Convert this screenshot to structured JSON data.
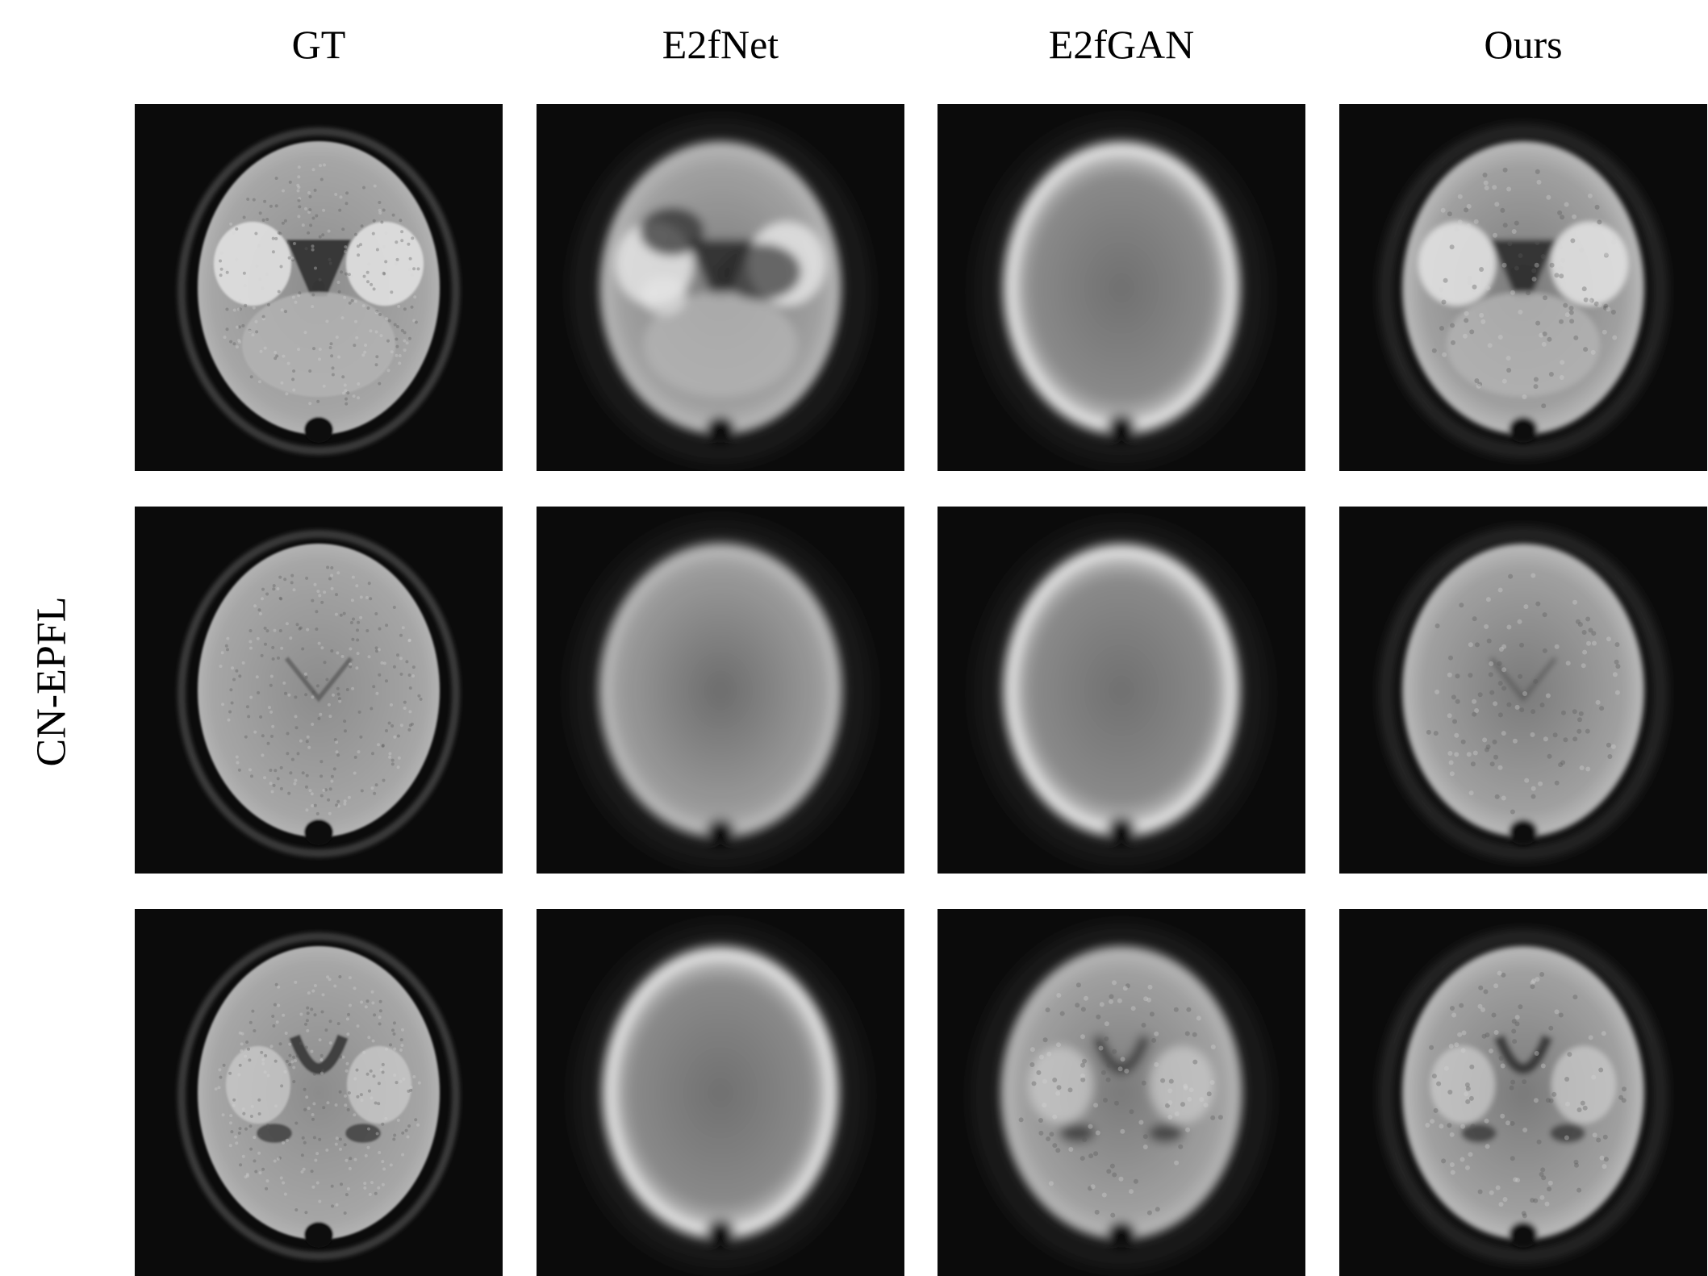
{
  "columns": [
    "GT",
    "E2fNet",
    "E2fGAN",
    "Ours"
  ],
  "row_label": "CN-EPFL",
  "grid": {
    "rows": 3,
    "cols": 4,
    "tiles": [
      {
        "row": 0,
        "col": 0,
        "method": "GT",
        "style": "sharp",
        "slice": "inferior"
      },
      {
        "row": 0,
        "col": 1,
        "method": "E2fNet",
        "style": "blurry-mottled",
        "slice": "inferior"
      },
      {
        "row": 0,
        "col": 2,
        "method": "E2fGAN",
        "style": "smooth-ring",
        "slice": "inferior"
      },
      {
        "row": 0,
        "col": 3,
        "method": "Ours",
        "style": "detailed",
        "slice": "inferior"
      },
      {
        "row": 1,
        "col": 0,
        "method": "GT",
        "style": "sharp",
        "slice": "mid"
      },
      {
        "row": 1,
        "col": 1,
        "method": "E2fNet",
        "style": "smooth-shell",
        "slice": "mid"
      },
      {
        "row": 1,
        "col": 2,
        "method": "E2fGAN",
        "style": "smooth-ring",
        "slice": "mid"
      },
      {
        "row": 1,
        "col": 3,
        "method": "Ours",
        "style": "detailed",
        "slice": "mid"
      },
      {
        "row": 2,
        "col": 0,
        "method": "GT",
        "style": "sharp",
        "slice": "lower-mid"
      },
      {
        "row": 2,
        "col": 1,
        "method": "E2fNet",
        "style": "smooth-ring",
        "slice": "lower-mid"
      },
      {
        "row": 2,
        "col": 2,
        "method": "E2fGAN",
        "style": "blurry-detailed",
        "slice": "lower-mid"
      },
      {
        "row": 2,
        "col": 3,
        "method": "Ours",
        "style": "detailed",
        "slice": "lower-mid"
      }
    ]
  }
}
